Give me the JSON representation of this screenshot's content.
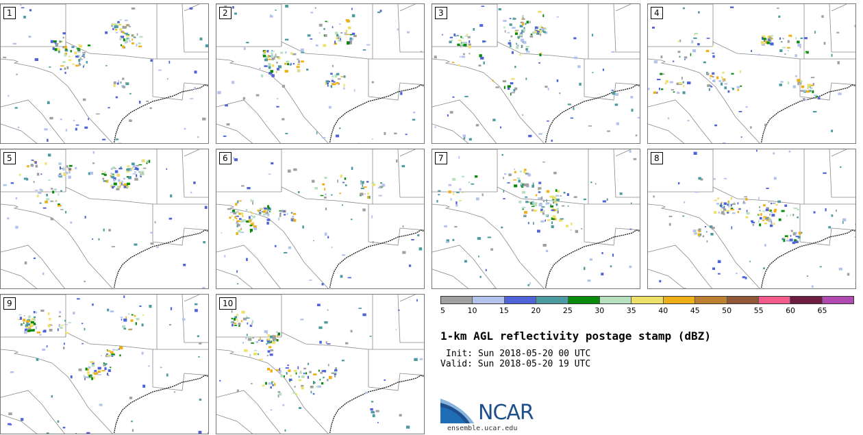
{
  "panels": [
    {
      "label": "1",
      "seed": 11
    },
    {
      "label": "2",
      "seed": 23
    },
    {
      "label": "3",
      "seed": 37
    },
    {
      "label": "4",
      "seed": 41
    },
    {
      "label": "5",
      "seed": 53
    },
    {
      "label": "6",
      "seed": 67
    },
    {
      "label": "7",
      "seed": 71
    },
    {
      "label": "8",
      "seed": 83
    },
    {
      "label": "9",
      "seed": 97
    },
    {
      "label": "10",
      "seed": 109
    }
  ],
  "colorbar": {
    "colors": [
      "#a0a0a0",
      "#b4c3ec",
      "#5064d8",
      "#4d9aa0",
      "#0a8a0a",
      "#b8e0c0",
      "#ece068",
      "#eeb018",
      "#bc8030",
      "#905838",
      "#f25c8a",
      "#6e1c40",
      "#b04ab0"
    ],
    "ticks": [
      "5",
      "10",
      "15",
      "20",
      "25",
      "30",
      "35",
      "40",
      "45",
      "50",
      "55",
      "60",
      "65"
    ]
  },
  "title": "1-km AGL reflectivity postage stamp (dBZ)",
  "init": "Init: Sun 2018-05-20 00 UTC",
  "valid": "Valid: Sun 2018-05-20 19 UTC",
  "logo_text": "NCAR",
  "url": "ensemble.ucar.edu"
}
